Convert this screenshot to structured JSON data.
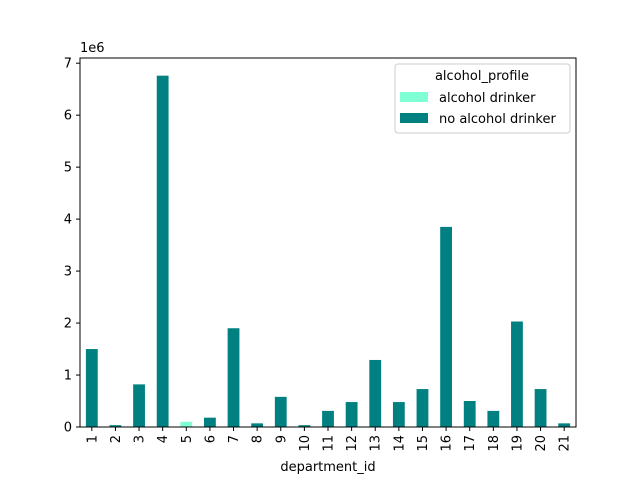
{
  "chart_data": {
    "type": "bar",
    "stacked": true,
    "categories": [
      "1",
      "2",
      "3",
      "4",
      "5",
      "6",
      "7",
      "8",
      "9",
      "10",
      "11",
      "12",
      "13",
      "14",
      "15",
      "16",
      "17",
      "18",
      "19",
      "20",
      "21"
    ],
    "series": [
      {
        "name": "alcohol drinker",
        "color": "#7fffd4",
        "values": [
          0,
          0,
          0,
          0,
          100000,
          0,
          0,
          0,
          0,
          0,
          0,
          0,
          0,
          0,
          0,
          0,
          0,
          0,
          0,
          0,
          0
        ]
      },
      {
        "name": "no alcohol drinker",
        "color": "#008080",
        "values": [
          1500000,
          35000,
          820000,
          6760000,
          0,
          180000,
          1900000,
          70000,
          580000,
          35000,
          310000,
          480000,
          1290000,
          480000,
          730000,
          3850000,
          500000,
          310000,
          2030000,
          730000,
          70000
        ]
      }
    ],
    "xlabel": "department_id",
    "ylabel": "",
    "yticks": [
      0,
      1,
      2,
      3,
      4,
      5,
      6,
      7
    ],
    "ytick_labels": [
      "0",
      "1",
      "2",
      "3",
      "4",
      "5",
      "6",
      "7"
    ],
    "y_scale_note": "1e6",
    "ylim": [
      0,
      7100000
    ],
    "grid": false,
    "legend": {
      "title": "alcohol_profile",
      "placement": "upper right"
    }
  }
}
